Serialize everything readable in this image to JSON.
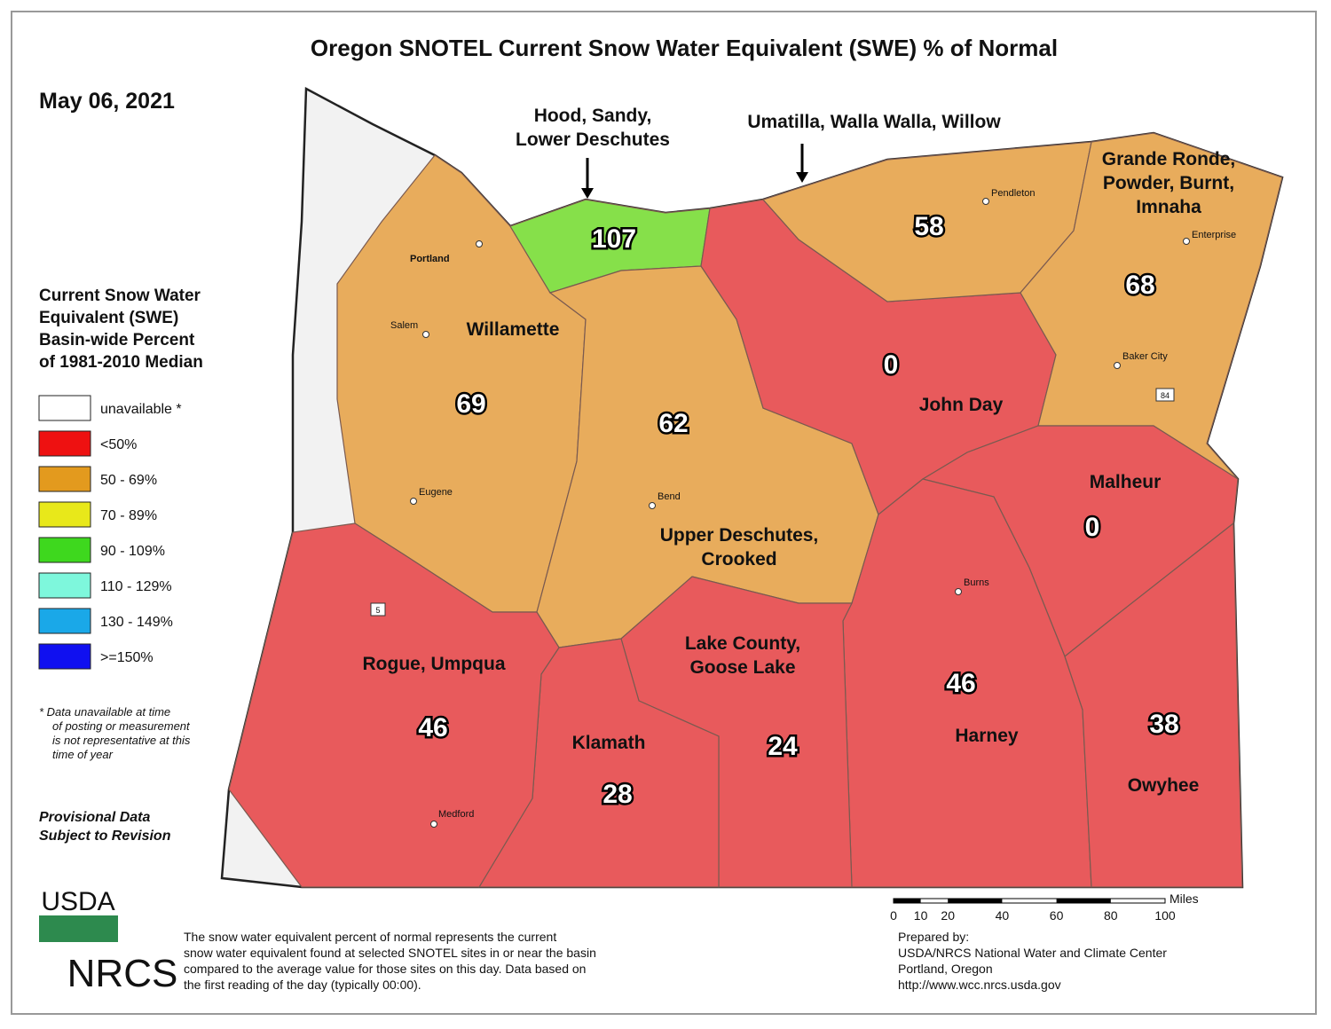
{
  "title": "Oregon SNOTEL Current Snow Water Equivalent (SWE) % of Normal",
  "date": "May 06, 2021",
  "legend": {
    "title": [
      "Current Snow Water",
      "Equivalent (SWE)",
      "Basin-wide Percent",
      "of 1981-2010 Median"
    ],
    "items": [
      {
        "label": "unavailable *",
        "color": "#ffffff"
      },
      {
        "label": "<50%",
        "color": "#ee1111"
      },
      {
        "label": "50 - 69%",
        "color": "#e39a1e"
      },
      {
        "label": "70 - 89%",
        "color": "#e8e81a"
      },
      {
        "label": "90 - 109%",
        "color": "#3ed81e"
      },
      {
        "label": "110 - 129%",
        "color": "#7ef7dc"
      },
      {
        "label": "130 - 149%",
        "color": "#1aa8e8"
      },
      {
        "label": ">=150%",
        "color": "#1010f0"
      }
    ],
    "footnote": [
      "*  Data unavailable at time",
      "of posting or measurement",
      "is not representative at this",
      "time of year"
    ],
    "provisional": [
      "Provisional Data",
      "Subject to Revision"
    ]
  },
  "basins": [
    {
      "name": [
        "Willamette"
      ],
      "value": 69
    },
    {
      "name": [
        "Hood, Sandy,",
        "Lower Deschutes"
      ],
      "value": 107
    },
    {
      "name": [
        "Upper Deschutes,",
        "Crooked"
      ],
      "value": 62
    },
    {
      "name": [
        "John Day"
      ],
      "value": 0
    },
    {
      "name": [
        "Umatilla, Walla Walla, Willow"
      ],
      "value": 58
    },
    {
      "name": [
        "Grande Ronde,",
        "Powder, Burnt,",
        "Imnaha"
      ],
      "value": 68
    },
    {
      "name": [
        "Malheur"
      ],
      "value": 0
    },
    {
      "name": [
        "Harney"
      ],
      "value": 46
    },
    {
      "name": [
        "Owyhee"
      ],
      "value": 38
    },
    {
      "name": [
        "Lake County,",
        "Goose Lake"
      ],
      "value": 24
    },
    {
      "name": [
        "Klamath"
      ],
      "value": 28
    },
    {
      "name": [
        "Rogue, Umpqua"
      ],
      "value": 46
    }
  ],
  "cities": [
    "Portland",
    "Salem",
    "Eugene",
    "Bend",
    "Medford",
    "Pendleton",
    "Enterprise",
    "Baker City",
    "Burns"
  ],
  "highways": [
    "5",
    "84"
  ],
  "scale": {
    "unit": "Miles",
    "ticks": [
      0,
      10,
      20,
      40,
      60,
      80,
      100
    ]
  },
  "footer": {
    "logo_usda": "USDA",
    "logo_nrcs": "NRCS",
    "description": [
      "The snow water equivalent percent of normal represents the current",
      "snow water equivalent found at selected SNOTEL sites in or near the basin",
      "compared to the average value for those sites on this day. Data based on",
      "the first reading of the day (typically 00:00)."
    ],
    "prepared": [
      "Prepared by:",
      "USDA/NRCS National Water and Climate Center",
      "Portland, Oregon",
      "http://www.wcc.nrcs.usda.gov"
    ]
  }
}
